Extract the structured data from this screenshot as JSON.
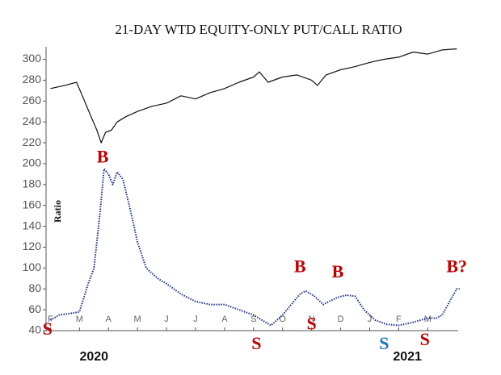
{
  "chart_data": {
    "type": "line",
    "title": "21-DAY WTD EQUITY-ONLY PUT/CALL RATIO",
    "ylabel": "Ratio",
    "xlim": [
      -0.15,
      14.05
    ],
    "ylim": [
      40,
      312
    ],
    "yticks": [
      40,
      60,
      80,
      100,
      120,
      140,
      160,
      180,
      200,
      220,
      240,
      260,
      280,
      300
    ],
    "xticks": [
      {
        "value": 0,
        "label": "F"
      },
      {
        "value": 1,
        "label": "M"
      },
      {
        "value": 2,
        "label": "A"
      },
      {
        "value": 3,
        "label": "M"
      },
      {
        "value": 4,
        "label": "J"
      },
      {
        "value": 5,
        "label": "J"
      },
      {
        "value": 6,
        "label": "A"
      },
      {
        "value": 7,
        "label": "S"
      },
      {
        "value": 8,
        "label": "O"
      },
      {
        "value": 9,
        "label": "N"
      },
      {
        "value": 10,
        "label": "D"
      },
      {
        "value": 11,
        "label": "J"
      },
      {
        "value": 12,
        "label": "F"
      },
      {
        "value": 13,
        "label": "M"
      }
    ],
    "year_labels": [
      {
        "label": "2020",
        "x": 1.5
      },
      {
        "label": "2021",
        "x": 12.3
      }
    ],
    "series": [
      {
        "color": "#111111",
        "line_style": "solid",
        "x": [
          0,
          0.5,
          0.9,
          1.1,
          1.4,
          1.6,
          1.75,
          1.9,
          2.1,
          2.3,
          2.6,
          3,
          3.5,
          4,
          4.5,
          5,
          5.5,
          6,
          6.5,
          7,
          7.2,
          7.5,
          8,
          8.5,
          9,
          9.2,
          9.5,
          10,
          10.5,
          11,
          11.5,
          12,
          12.5,
          13,
          13.5,
          14
        ],
        "values": [
          272,
          275,
          278,
          265,
          245,
          232,
          220,
          230,
          232,
          240,
          245,
          250,
          255,
          258,
          265,
          262,
          268,
          272,
          278,
          283,
          288,
          278,
          283,
          285,
          280,
          275,
          285,
          290,
          293,
          297,
          300,
          302,
          307,
          305,
          309,
          310
        ]
      },
      {
        "color": "#1f2f8f",
        "line_style": "dotted",
        "x": [
          0,
          0.3,
          0.8,
          1.0,
          1.3,
          1.5,
          1.7,
          1.85,
          2.0,
          2.15,
          2.3,
          2.5,
          2.8,
          3,
          3.3,
          3.7,
          4,
          4.5,
          5,
          5.5,
          6,
          6.5,
          7,
          7.3,
          7.6,
          8,
          8.3,
          8.6,
          8.8,
          9.1,
          9.4,
          9.6,
          9.9,
          10.2,
          10.5,
          10.8,
          11.2,
          11.6,
          12,
          12.5,
          13,
          13.3,
          13.5,
          13.8,
          14,
          14.1
        ],
        "values": [
          50,
          55,
          57,
          58,
          85,
          100,
          150,
          195,
          190,
          180,
          192,
          185,
          150,
          125,
          100,
          90,
          85,
          75,
          68,
          65,
          65,
          60,
          55,
          50,
          45,
          55,
          65,
          75,
          78,
          73,
          65,
          68,
          72,
          74,
          73,
          60,
          50,
          46,
          45,
          48,
          52,
          52,
          55,
          70,
          80,
          80
        ]
      }
    ],
    "annotations": [
      {
        "text": "S",
        "x": -0.1,
        "y": 40,
        "color": "#c00000"
      },
      {
        "text": "B",
        "x": 1.8,
        "y": 205,
        "color": "#c00000"
      },
      {
        "text": "S",
        "x": 7.1,
        "y": 26,
        "color": "#c00000"
      },
      {
        "text": "B",
        "x": 8.6,
        "y": 100,
        "color": "#c00000"
      },
      {
        "text": "S",
        "x": 9.0,
        "y": 45,
        "color": "#c00000"
      },
      {
        "text": "B",
        "x": 9.9,
        "y": 95,
        "color": "#c00000"
      },
      {
        "text": "S",
        "x": 11.5,
        "y": 26,
        "color": "#1e73be"
      },
      {
        "text": "S",
        "x": 12.9,
        "y": 30,
        "color": "#c00000"
      },
      {
        "text": "B?",
        "x": 14.0,
        "y": 100,
        "color": "#c00000"
      }
    ]
  }
}
